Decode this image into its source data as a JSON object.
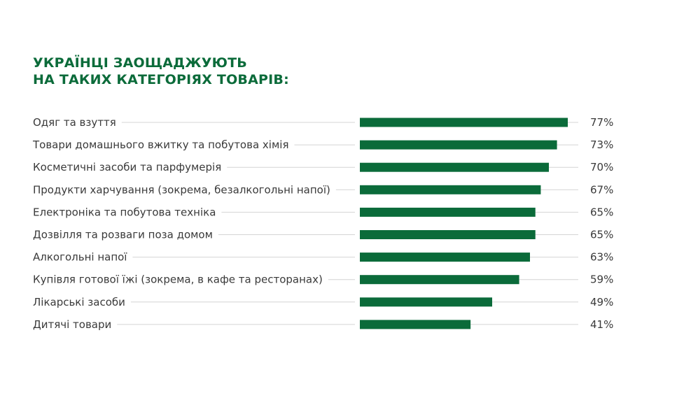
{
  "title": {
    "line1": "УКРАЇНЦІ ЗАОЩАДЖУЮТЬ",
    "line2": "НА ТАКИХ КАТЕГОРІЯХ ТОВАРІВ:"
  },
  "colors": {
    "bar": "#0b6b3a",
    "title": "#0b6b3a",
    "leader": "#d4d4d4",
    "text": "#3a3a3a"
  },
  "chart_data": {
    "type": "bar",
    "orientation": "horizontal",
    "title": "УКРАЇНЦІ ЗАОЩАДЖУЮТЬ НА ТАКИХ КАТЕГОРІЯХ ТОВАРІВ:",
    "xlim": [
      0,
      100
    ],
    "categories": [
      "Одяг та взуття",
      "Товари домашнього вжитку та побутова хімія",
      "Косметичні засоби та парфумерія",
      "Продукти харчування (зокрема, безалкогольні напої)",
      "Електроніка та побутова техніка",
      "Дозвілля та розваги поза домом",
      "Алкогольні напої",
      "Купівля готової їжі (зокрема, в кафе та ресторанах)",
      "Лікарські засоби",
      "Дитячі товари"
    ],
    "values": [
      77,
      73,
      70,
      67,
      65,
      65,
      63,
      59,
      49,
      41
    ],
    "value_labels": [
      "77%",
      "73%",
      "70%",
      "67%",
      "65%",
      "65%",
      "63%",
      "59%",
      "49%",
      "41%"
    ]
  }
}
